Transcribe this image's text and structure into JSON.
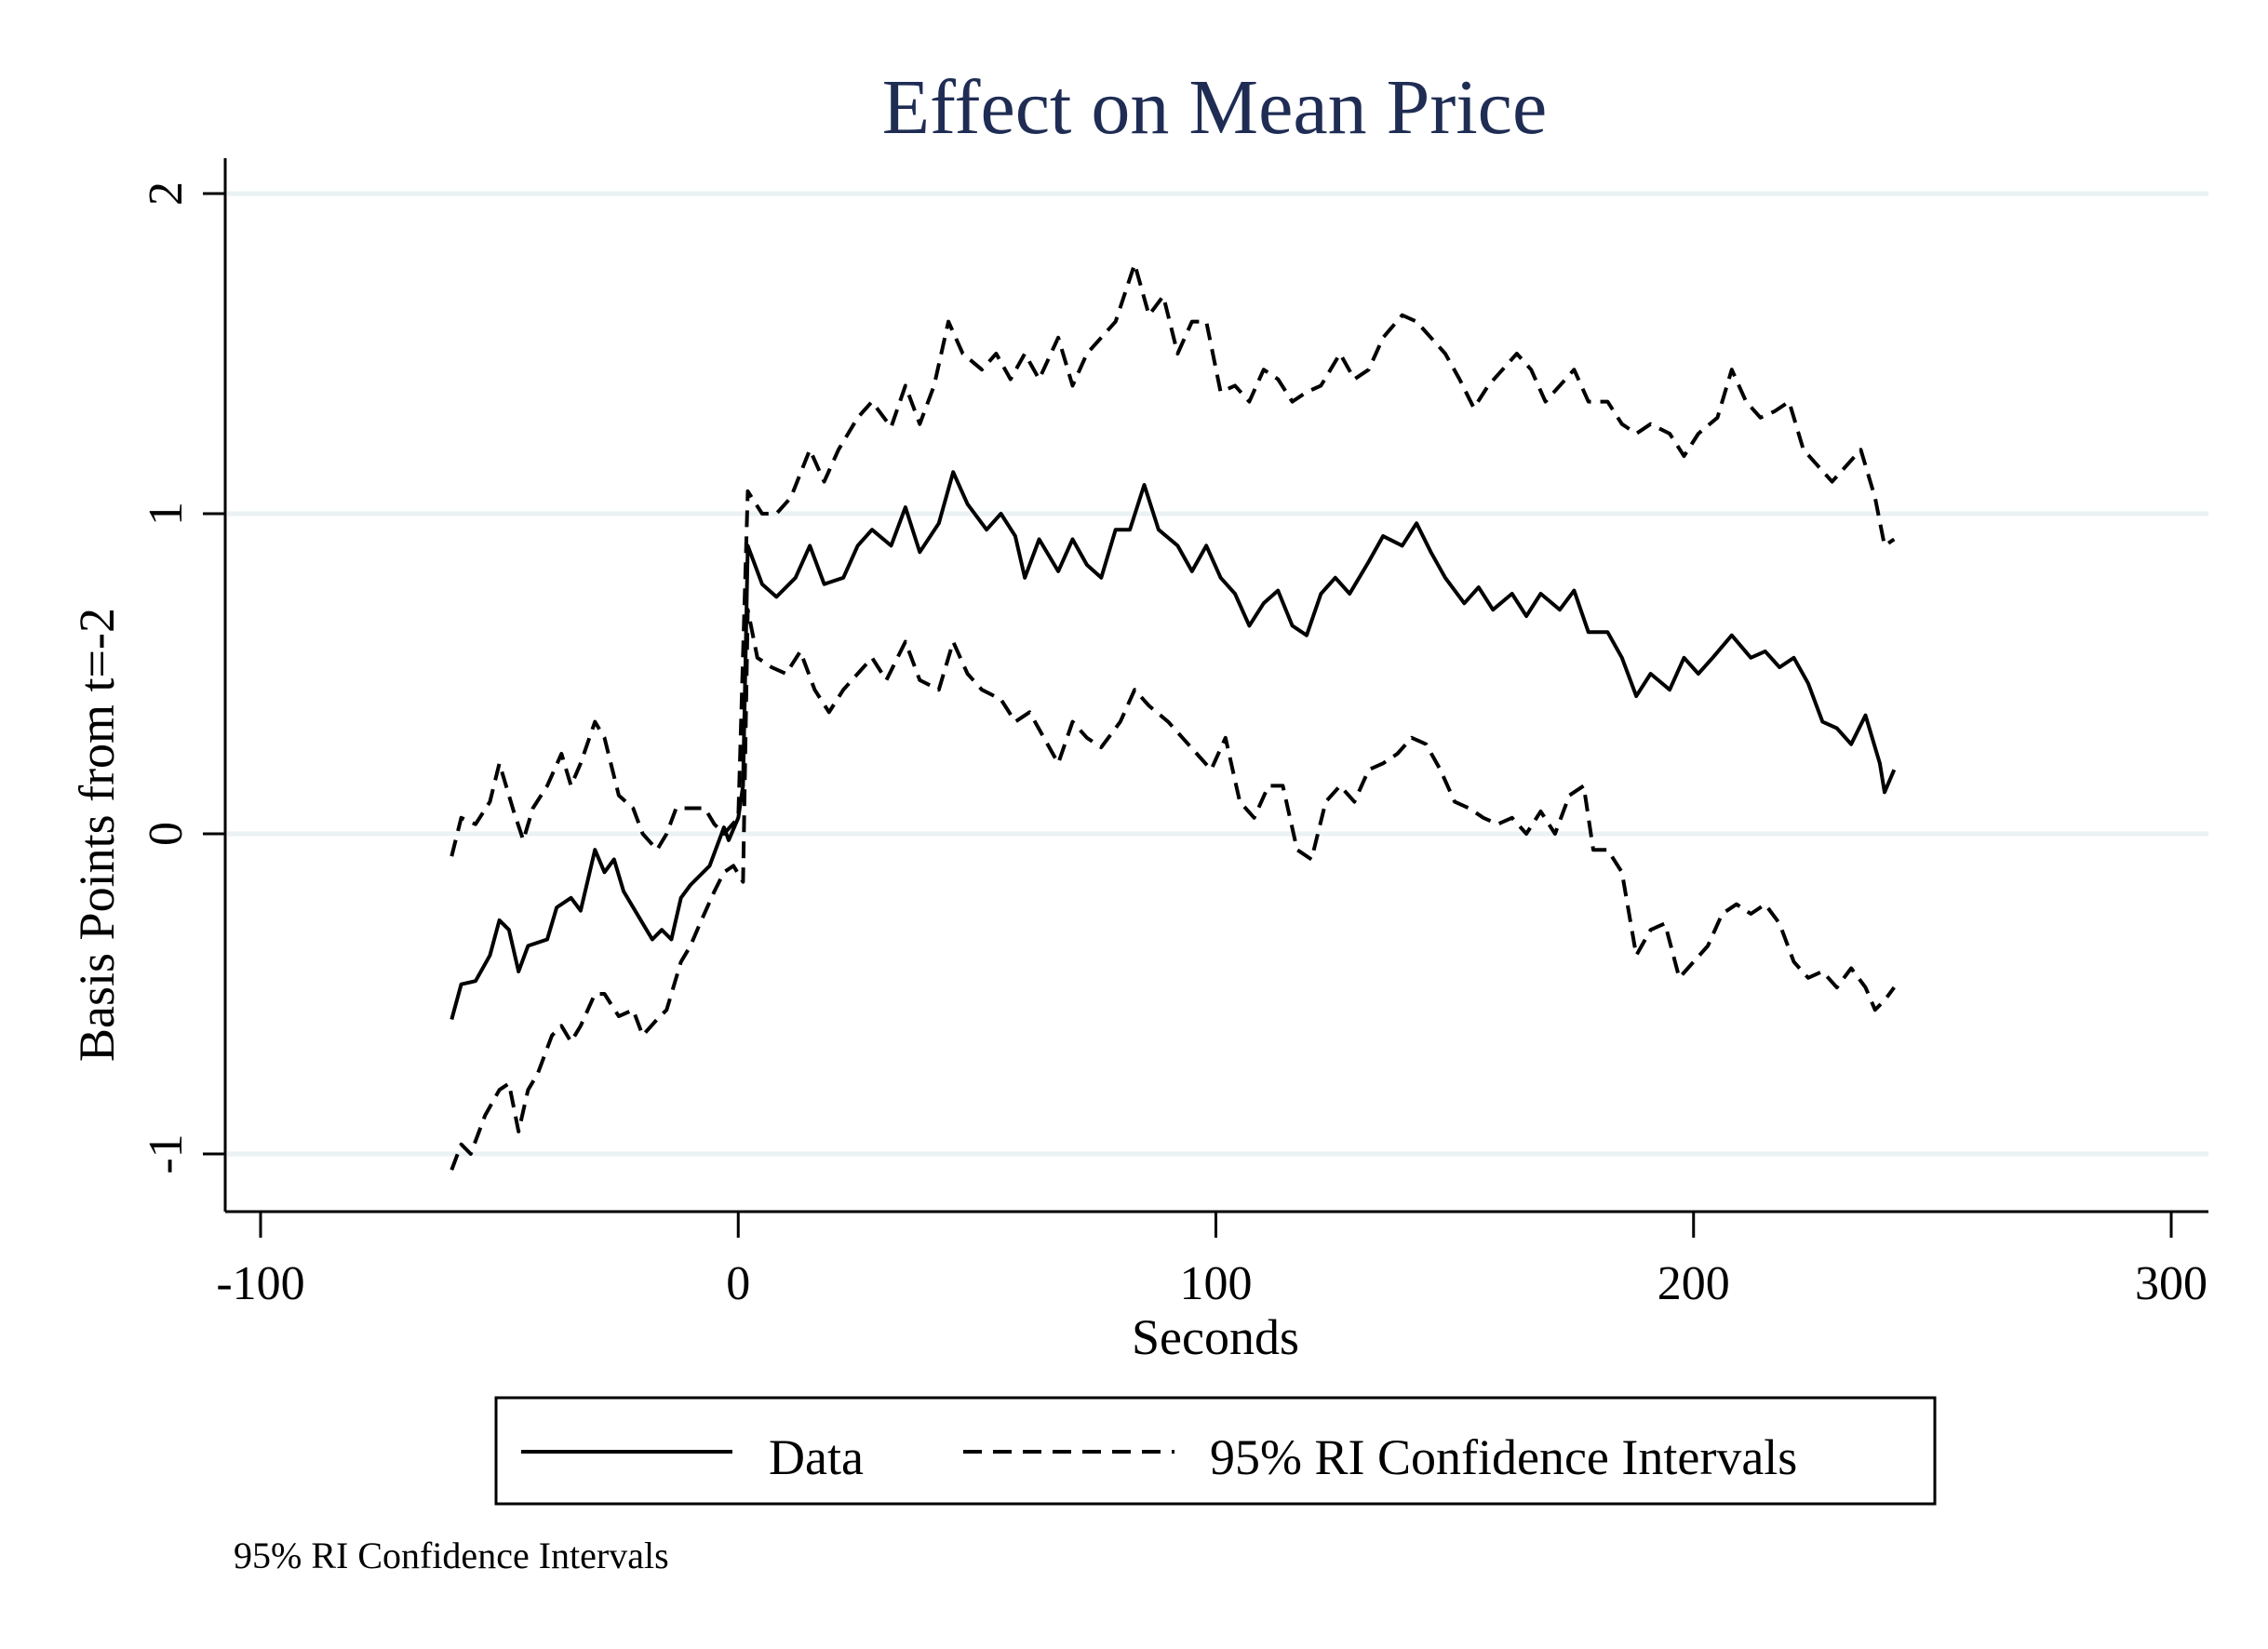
{
  "chart_data": {
    "type": "line",
    "title": "Effect on Mean Price",
    "xlabel": "Seconds",
    "ylabel": "Basis Points from t=-2",
    "xlim": [
      -107,
      308
    ],
    "ylim": [
      -1.18,
      2.1
    ],
    "xticks": [
      -100,
      0,
      100,
      200,
      300
    ],
    "xtick_labels": [
      "-100",
      "0",
      "100",
      "200",
      "300"
    ],
    "yticks": [
      -1,
      0,
      1,
      2
    ],
    "ytick_labels": [
      "-1",
      "0",
      "1",
      "2"
    ],
    "grid": "horizontal",
    "grid_color": "#eaf2f3",
    "title_color": "#1f2d54",
    "legend": {
      "placement": "bottom",
      "entries": [
        {
          "label": "Data",
          "style": "solid"
        },
        {
          "label": "95% RI Confidence Intervals",
          "style": "dashed"
        }
      ]
    },
    "note": "95% RI Confidence Intervals",
    "series": [
      {
        "name": "Data",
        "style": "solid",
        "x": [
          -60,
          -58,
          -55,
          -52,
          -50,
          -48,
          -46,
          -44,
          -40,
          -38,
          -35,
          -33,
          -30,
          -28,
          -26,
          -24,
          -20,
          -18,
          -16,
          -14,
          -12,
          -10,
          -6,
          -3,
          -2,
          0,
          1,
          2,
          5,
          8,
          12,
          15,
          18,
          22,
          25,
          28,
          32,
          35,
          38,
          42,
          45,
          48,
          52,
          55,
          58,
          60,
          63,
          67,
          70,
          73,
          76,
          79,
          82,
          85,
          88,
          92,
          95,
          98,
          101,
          104,
          107,
          110,
          113,
          116,
          119,
          122,
          125,
          128,
          132,
          135,
          139,
          142,
          145,
          148,
          152,
          155,
          158,
          162,
          165,
          168,
          172,
          175,
          178,
          182,
          185,
          188,
          191,
          195,
          198,
          201,
          204,
          208,
          212,
          215,
          218,
          221,
          224,
          227,
          230,
          233,
          236,
          239,
          240,
          242
        ],
        "y": [
          -0.58,
          -0.47,
          -0.46,
          -0.38,
          -0.27,
          -0.3,
          -0.43,
          -0.35,
          -0.33,
          -0.23,
          -0.2,
          -0.24,
          -0.05,
          -0.12,
          -0.08,
          -0.18,
          -0.28,
          -0.33,
          -0.3,
          -0.33,
          -0.2,
          -0.16,
          -0.1,
          0.02,
          -0.02,
          0.05,
          0.15,
          0.9,
          0.78,
          0.74,
          0.8,
          0.9,
          0.78,
          0.8,
          0.9,
          0.95,
          0.9,
          1.02,
          0.88,
          0.97,
          1.13,
          1.03,
          0.95,
          1.0,
          0.93,
          0.8,
          0.92,
          0.82,
          0.92,
          0.84,
          0.8,
          0.95,
          0.95,
          1.09,
          0.95,
          0.9,
          0.82,
          0.9,
          0.8,
          0.75,
          0.65,
          0.72,
          0.76,
          0.65,
          0.62,
          0.75,
          0.8,
          0.75,
          0.85,
          0.93,
          0.9,
          0.97,
          0.88,
          0.8,
          0.72,
          0.77,
          0.7,
          0.75,
          0.68,
          0.75,
          0.7,
          0.76,
          0.63,
          0.63,
          0.55,
          0.43,
          0.5,
          0.45,
          0.55,
          0.5,
          0.55,
          0.62,
          0.55,
          0.57,
          0.52,
          0.55,
          0.47,
          0.35,
          0.33,
          0.28,
          0.37,
          0.22,
          0.13,
          0.2
        ]
      },
      {
        "name": "95% RI Confidence Intervals (upper)",
        "style": "dashed",
        "x": [
          -60,
          -58,
          -55,
          -52,
          -50,
          -47,
          -45,
          -43,
          -40,
          -37,
          -35,
          -33,
          -30,
          -28,
          -25,
          -22,
          -20,
          -17,
          -15,
          -13,
          -10,
          -7,
          -5,
          -3,
          0,
          2,
          5,
          8,
          11,
          15,
          18,
          21,
          25,
          28,
          32,
          35,
          38,
          41,
          44,
          47,
          51,
          54,
          57,
          60,
          63,
          67,
          70,
          73,
          76,
          79,
          83,
          86,
          89,
          92,
          95,
          98,
          101,
          104,
          107,
          110,
          113,
          116,
          119,
          122,
          126,
          129,
          132,
          135,
          139,
          142,
          145,
          148,
          151,
          154,
          157,
          160,
          163,
          166,
          169,
          172,
          175,
          178,
          182,
          185,
          188,
          191,
          195,
          198,
          201,
          205,
          208,
          211,
          214,
          217,
          220,
          223,
          226,
          229,
          232,
          235,
          238,
          240,
          242
        ],
        "y": [
          -0.07,
          0.05,
          0.03,
          0.1,
          0.22,
          0.07,
          -0.02,
          0.08,
          0.15,
          0.25,
          0.15,
          0.22,
          0.35,
          0.3,
          0.12,
          0.08,
          0.0,
          -0.05,
          0.0,
          0.08,
          0.08,
          0.08,
          0.03,
          0.0,
          0.05,
          1.07,
          1.0,
          1.0,
          1.05,
          1.2,
          1.1,
          1.2,
          1.3,
          1.35,
          1.27,
          1.4,
          1.28,
          1.4,
          1.6,
          1.5,
          1.45,
          1.5,
          1.42,
          1.5,
          1.42,
          1.55,
          1.4,
          1.5,
          1.55,
          1.6,
          1.78,
          1.62,
          1.68,
          1.5,
          1.6,
          1.6,
          1.38,
          1.4,
          1.35,
          1.45,
          1.42,
          1.35,
          1.38,
          1.4,
          1.5,
          1.42,
          1.45,
          1.55,
          1.62,
          1.6,
          1.55,
          1.5,
          1.42,
          1.33,
          1.4,
          1.45,
          1.5,
          1.45,
          1.35,
          1.4,
          1.45,
          1.35,
          1.35,
          1.28,
          1.25,
          1.28,
          1.25,
          1.18,
          1.25,
          1.3,
          1.45,
          1.35,
          1.3,
          1.32,
          1.35,
          1.2,
          1.15,
          1.1,
          1.15,
          1.2,
          1.05,
          0.9,
          0.92
        ]
      },
      {
        "name": "95% RI Confidence Intervals (lower)",
        "style": "dashed",
        "x": [
          -60,
          -58,
          -56,
          -53,
          -50,
          -48,
          -46,
          -44,
          -42,
          -39,
          -37,
          -35,
          -33,
          -30,
          -28,
          -25,
          -22,
          -20,
          -17,
          -15,
          -12,
          -10,
          -8,
          -5,
          -3,
          -1,
          1,
          2,
          4,
          7,
          10,
          13,
          16,
          19,
          22,
          25,
          28,
          31,
          35,
          38,
          42,
          45,
          48,
          51,
          55,
          58,
          61,
          64,
          67,
          70,
          73,
          76,
          80,
          83,
          86,
          90,
          93,
          96,
          99,
          102,
          105,
          108,
          111,
          114,
          117,
          120,
          123,
          126,
          129,
          132,
          135,
          138,
          141,
          144,
          147,
          150,
          153,
          156,
          159,
          162,
          165,
          168,
          171,
          174,
          177,
          179,
          182,
          185,
          188,
          191,
          194,
          197,
          200,
          203,
          206,
          209,
          212,
          215,
          218,
          221,
          224,
          227,
          230,
          233,
          236,
          238,
          240,
          242
        ],
        "y": [
          -1.05,
          -0.97,
          -1.0,
          -0.88,
          -0.8,
          -0.78,
          -0.93,
          -0.8,
          -0.75,
          -0.63,
          -0.6,
          -0.65,
          -0.6,
          -0.5,
          -0.5,
          -0.57,
          -0.55,
          -0.63,
          -0.58,
          -0.55,
          -0.4,
          -0.35,
          -0.28,
          -0.18,
          -0.12,
          -0.1,
          -0.15,
          0.7,
          0.55,
          0.52,
          0.5,
          0.57,
          0.45,
          0.38,
          0.45,
          0.5,
          0.55,
          0.48,
          0.6,
          0.48,
          0.45,
          0.6,
          0.5,
          0.45,
          0.42,
          0.35,
          0.38,
          0.3,
          0.22,
          0.35,
          0.3,
          0.27,
          0.35,
          0.45,
          0.4,
          0.35,
          0.3,
          0.25,
          0.2,
          0.3,
          0.1,
          0.05,
          0.15,
          0.15,
          -0.05,
          -0.08,
          0.1,
          0.15,
          0.1,
          0.2,
          0.22,
          0.25,
          0.3,
          0.28,
          0.2,
          0.1,
          0.08,
          0.05,
          0.03,
          0.05,
          0.0,
          0.07,
          0.0,
          0.12,
          0.15,
          -0.05,
          -0.05,
          -0.12,
          -0.38,
          -0.3,
          -0.28,
          -0.45,
          -0.4,
          -0.35,
          -0.25,
          -0.22,
          -0.25,
          -0.22,
          -0.28,
          -0.4,
          -0.45,
          -0.43,
          -0.48,
          -0.42,
          -0.48,
          -0.55,
          -0.52,
          -0.48
        ]
      }
    ]
  }
}
